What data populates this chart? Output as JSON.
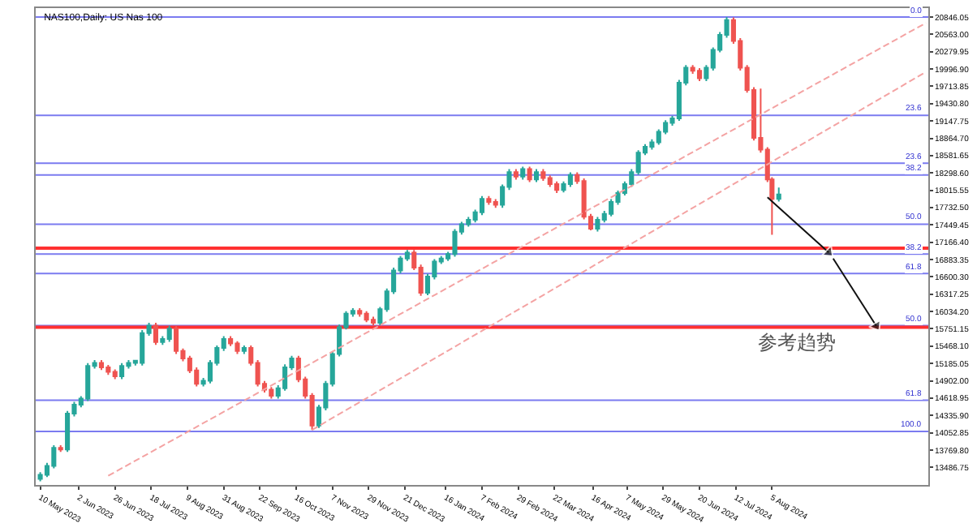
{
  "chart_data": {
    "type": "candlestick",
    "title": "NAS100,Daily: US Nas 100",
    "colors": [
      "#26a69a",
      "#26a69a",
      "#26a69a",
      "#ef5350",
      "#26a69a",
      "#26a69a",
      "#26a69a",
      "#26a69a",
      "#26a69a",
      "#ef5350",
      "#ef5350",
      "#ef5350",
      "#26a69a",
      "#26a69a",
      "#26a69a",
      "#26a69a",
      "#26a69a",
      "#ef5350",
      "#26a69a",
      "#26a69a",
      "#ef5350",
      "#ef5350",
      "#ef5350",
      "#ef5350",
      "#26a69a",
      "#26a69a",
      "#26a69a",
      "#26a69a",
      "#ef5350",
      "#ef5350",
      "#26a69a",
      "#ef5350",
      "#ef5350",
      "#ef5350",
      "#ef5350",
      "#26a69a",
      "#26a69a",
      "#26a69a",
      "#ef5350",
      "#ef5350",
      "#ef5350",
      "#26a69a",
      "#26a69a",
      "#26a69a",
      "#26a69a",
      "#26a69a",
      "#26a69a",
      "#ef5350",
      "#ef5350",
      "#ef5350",
      "#26a69a",
      "#26a69a",
      "#26a69a",
      "#26a69a",
      "#26a69a",
      "#ef5350",
      "#ef5350",
      "#26a69a",
      "#26a69a",
      "#26a69a",
      "#26a69a",
      "#26a69a",
      "#26a69a",
      "#26a69a",
      "#26a69a",
      "#26a69a",
      "#ef5350",
      "#ef5350",
      "#26a69a",
      "#26a69a",
      "#ef5350",
      "#26a69a",
      "#ef5350",
      "#26a69a",
      "#ef5350",
      "#ef5350",
      "#ef5350",
      "#26a69a",
      "#26a69a",
      "#ef5350",
      "#ef5350",
      "#ef5350",
      "#26a69a",
      "#26a69a",
      "#26a69a",
      "#26a69a",
      "#26a69a",
      "#26a69a",
      "#26a69a",
      "#26a69a",
      "#26a69a",
      "#26a69a",
      "#26a69a",
      "#26a69a",
      "#26a69a",
      "#26a69a",
      "#ef5350",
      "#ef5350",
      "#26a69a",
      "#26a69a",
      "#26a69a",
      "#26a69a",
      "#ef5350",
      "#ef5350",
      "#ef5350",
      "#ef5350",
      "#ef5350",
      "#ef5350",
      "#ef5350",
      "#26a69a"
    ],
    "x": [
      "2023-05-10",
      "2023-05-15",
      "2023-05-18",
      "2023-05-23",
      "2023-05-26",
      "2023-05-31",
      "2023-06-05",
      "2023-06-08",
      "2023-06-13",
      "2023-06-16",
      "2023-06-21",
      "2023-06-26",
      "2023-06-29",
      "2023-07-04",
      "2023-07-07",
      "2023-07-12",
      "2023-07-17",
      "2023-07-20",
      "2023-07-25",
      "2023-07-28",
      "2023-08-02",
      "2023-08-07",
      "2023-08-10",
      "2023-08-15",
      "2023-08-18",
      "2023-08-23",
      "2023-08-28",
      "2023-08-31",
      "2023-09-05",
      "2023-09-08",
      "2023-09-13",
      "2023-09-18",
      "2023-09-21",
      "2023-09-26",
      "2023-09-29",
      "2023-10-04",
      "2023-10-09",
      "2023-10-12",
      "2023-10-17",
      "2023-10-20",
      "2023-10-25",
      "2023-10-30",
      "2023-11-02",
      "2023-11-07",
      "2023-11-10",
      "2023-11-15",
      "2023-11-20",
      "2023-11-23",
      "2023-11-28",
      "2023-12-01",
      "2023-12-06",
      "2023-12-11",
      "2023-12-14",
      "2023-12-19",
      "2023-12-22",
      "2023-12-27",
      "2024-01-01",
      "2024-01-04",
      "2024-01-09",
      "2024-01-12",
      "2024-01-17",
      "2024-01-22",
      "2024-01-25",
      "2024-01-30",
      "2024-02-02",
      "2024-02-07",
      "2024-02-12",
      "2024-02-15",
      "2024-02-20",
      "2024-02-23",
      "2024-02-28",
      "2024-03-04",
      "2024-03-07",
      "2024-03-12",
      "2024-03-15",
      "2024-03-20",
      "2024-03-25",
      "2024-03-28",
      "2024-04-02",
      "2024-04-05",
      "2024-04-10",
      "2024-04-15",
      "2024-04-18",
      "2024-04-23",
      "2024-04-26",
      "2024-05-01",
      "2024-05-06",
      "2024-05-09",
      "2024-05-14",
      "2024-05-17",
      "2024-05-22",
      "2024-05-27",
      "2024-05-30",
      "2024-06-04",
      "2024-06-07",
      "2024-06-12",
      "2024-06-17",
      "2024-06-20",
      "2024-06-25",
      "2024-06-28",
      "2024-07-03",
      "2024-07-08",
      "2024-07-11",
      "2024-07-16",
      "2024-07-19",
      "2024-07-24",
      "2024-07-29",
      "2024-08-01",
      "2024-08-05",
      "2024-08-08"
    ],
    "ohlc": [
      [
        13300,
        13410,
        13260,
        13367
      ],
      [
        13367,
        13560,
        13330,
        13513
      ],
      [
        13513,
        13850,
        13470,
        13806
      ],
      [
        13806,
        13850,
        13740,
        13781
      ],
      [
        13781,
        14410,
        13740,
        14366
      ],
      [
        14366,
        14560,
        14320,
        14512
      ],
      [
        14512,
        14650,
        14470,
        14610
      ],
      [
        14610,
        15190,
        14570,
        15146
      ],
      [
        15146,
        15240,
        15100,
        15194
      ],
      [
        15194,
        15240,
        15080,
        15121
      ],
      [
        15121,
        15160,
        15000,
        15048
      ],
      [
        15048,
        15090,
        14930,
        14975
      ],
      [
        14975,
        15190,
        14930,
        15146
      ],
      [
        15146,
        15240,
        15100,
        15194
      ],
      [
        15194,
        15240,
        15150,
        15230
      ],
      [
        15194,
        15730,
        15150,
        15682
      ],
      [
        15682,
        15850,
        15640,
        15803
      ],
      [
        15803,
        15850,
        15490,
        15535
      ],
      [
        15535,
        15630,
        15490,
        15584
      ],
      [
        15584,
        15800,
        15540,
        15755
      ],
      [
        15755,
        15800,
        15340,
        15389
      ],
      [
        15389,
        15430,
        15220,
        15267
      ],
      [
        15267,
        15310,
        15030,
        15073
      ],
      [
        15073,
        15120,
        14810,
        14853
      ],
      [
        14853,
        14950,
        14810,
        14902
      ],
      [
        14902,
        15240,
        14860,
        15194
      ],
      [
        15194,
        15480,
        15150,
        15438
      ],
      [
        15438,
        15630,
        15390,
        15584
      ],
      [
        15584,
        15630,
        15470,
        15511
      ],
      [
        15511,
        15550,
        15340,
        15389
      ],
      [
        15389,
        15480,
        15340,
        15438
      ],
      [
        15438,
        15480,
        15150,
        15194
      ],
      [
        15194,
        15240,
        14810,
        14853
      ],
      [
        14853,
        14900,
        14710,
        14756
      ],
      [
        14756,
        14800,
        14610,
        14658
      ],
      [
        14658,
        14830,
        14610,
        14780
      ],
      [
        14780,
        15170,
        14740,
        15121
      ],
      [
        15121,
        15310,
        15080,
        15267
      ],
      [
        15267,
        15310,
        14880,
        14926
      ],
      [
        14926,
        14970,
        14610,
        14658
      ],
      [
        14658,
        14700,
        14098,
        14171
      ],
      [
        14171,
        14510,
        14130,
        14464
      ],
      [
        14464,
        14900,
        14420,
        14853
      ],
      [
        14853,
        15380,
        14810,
        15340
      ],
      [
        15340,
        15820,
        15300,
        15779
      ],
      [
        15779,
        16040,
        15740,
        15998
      ],
      [
        15998,
        16090,
        15950,
        16047
      ],
      [
        16047,
        16090,
        15950,
        15998
      ],
      [
        15998,
        16040,
        15860,
        15901
      ],
      [
        15901,
        15950,
        15810,
        15852
      ],
      [
        15852,
        16110,
        15810,
        16071
      ],
      [
        16071,
        16410,
        16030,
        16364
      ],
      [
        16364,
        16750,
        16320,
        16705
      ],
      [
        16705,
        16940,
        16660,
        16900
      ],
      [
        16900,
        17040,
        16860,
        16997
      ],
      [
        16997,
        17040,
        16710,
        16753
      ],
      [
        16753,
        16800,
        16290,
        16339
      ],
      [
        16339,
        16650,
        16300,
        16607
      ],
      [
        16607,
        16890,
        16560,
        16851
      ],
      [
        16851,
        16940,
        16810,
        16900
      ],
      [
        16900,
        17010,
        16860,
        16973
      ],
      [
        16973,
        17380,
        16930,
        17338
      ],
      [
        17338,
        17500,
        17290,
        17460
      ],
      [
        17460,
        17580,
        17420,
        17533
      ],
      [
        17533,
        17700,
        17490,
        17655
      ],
      [
        17655,
        17920,
        17610,
        17874
      ],
      [
        17874,
        17920,
        17780,
        17825
      ],
      [
        17825,
        17870,
        17730,
        17777
      ],
      [
        17777,
        18110,
        17730,
        18069
      ],
      [
        18069,
        18360,
        18020,
        18312
      ],
      [
        18312,
        18360,
        18190,
        18239
      ],
      [
        18239,
        18400,
        18190,
        18361
      ],
      [
        18361,
        18400,
        18150,
        18191
      ],
      [
        18191,
        18360,
        18150,
        18312
      ],
      [
        18312,
        18360,
        18170,
        18215
      ],
      [
        18215,
        18260,
        18070,
        18117
      ],
      [
        18117,
        18160,
        17970,
        18020
      ],
      [
        18020,
        18160,
        17980,
        18117
      ],
      [
        18117,
        18310,
        18070,
        18264
      ],
      [
        18264,
        18310,
        18120,
        18166
      ],
      [
        18166,
        18210,
        17540,
        17582
      ],
      [
        17582,
        17630,
        17362,
        17387
      ],
      [
        17387,
        17580,
        17340,
        17533
      ],
      [
        17533,
        17680,
        17490,
        17630
      ],
      [
        17630,
        17870,
        17590,
        17825
      ],
      [
        17825,
        18010,
        17780,
        17971
      ],
      [
        17971,
        18160,
        17930,
        18117
      ],
      [
        18117,
        18360,
        18070,
        18312
      ],
      [
        18312,
        18670,
        18270,
        18629
      ],
      [
        18629,
        18770,
        18590,
        18727
      ],
      [
        18727,
        18850,
        18680,
        18800
      ],
      [
        18800,
        19010,
        18760,
        18970
      ],
      [
        18970,
        19160,
        18930,
        19116
      ],
      [
        19116,
        19230,
        19070,
        19189
      ],
      [
        19189,
        19820,
        19150,
        19774
      ],
      [
        19774,
        20060,
        19730,
        20018
      ],
      [
        20018,
        20060,
        19920,
        19969
      ],
      [
        19969,
        20010,
        19800,
        19847
      ],
      [
        19847,
        20060,
        19800,
        20018
      ],
      [
        20018,
        20350,
        19970,
        20310
      ],
      [
        20310,
        20600,
        20270,
        20554
      ],
      [
        20554,
        20846,
        20510,
        20797
      ],
      [
        20797,
        20840,
        20410,
        20456
      ],
      [
        20456,
        20500,
        19970,
        20018
      ],
      [
        20018,
        20060,
        19610,
        19652
      ],
      [
        19652,
        19700,
        18830,
        18873
      ],
      [
        18873,
        19677,
        18630,
        18678
      ],
      [
        18678,
        18720,
        18150,
        18191
      ],
      [
        18191,
        18230,
        17289,
        17874
      ],
      [
        17874,
        18060,
        17830,
        17947
      ]
    ],
    "series": [
      {
        "type": "line",
        "color": "#f4a3a3",
        "line_style": "dashed",
        "x": [
          "2023-06-21",
          "2024-11-07"
        ],
        "values": [
          13350,
          20750
        ]
      },
      {
        "type": "line",
        "color": "#f4a3a3",
        "line_style": "dashed",
        "x": [
          "2023-10-25",
          "2024-11-07"
        ],
        "values": [
          14100,
          19950
        ]
      },
      {
        "type": "line",
        "color": "#111111",
        "line_style": "solid",
        "marker": "triangle",
        "x": [
          "2024-08-01",
          "2024-09-09"
        ],
        "values": [
          17900,
          17000
        ]
      },
      {
        "type": "line",
        "color": "#111111",
        "line_style": "solid",
        "marker": "triangle",
        "x": [
          "2024-09-11",
          "2024-10-08"
        ],
        "values": [
          16900,
          15800
        ]
      }
    ],
    "ref_lines": [
      {
        "axis": "y",
        "value": 20846,
        "color": "#7b7bf0"
      },
      {
        "axis": "y",
        "value": 19238,
        "color": "#7b7bf0"
      },
      {
        "axis": "y",
        "value": 18459,
        "color": "#7b7bf0"
      },
      {
        "axis": "y",
        "value": 18264,
        "color": "#7b7bf0"
      },
      {
        "axis": "y",
        "value": 17460,
        "color": "#7b7bf0"
      },
      {
        "axis": "y",
        "value": 17070,
        "color": "#ff3030"
      },
      {
        "axis": "y",
        "value": 16973,
        "color": "#7b7bf0"
      },
      {
        "axis": "y",
        "value": 16656,
        "color": "#7b7bf0"
      },
      {
        "axis": "y",
        "value": 15803,
        "color": "#7b7bf0"
      },
      {
        "axis": "y",
        "value": 15779,
        "color": "#ff3030"
      },
      {
        "axis": "y",
        "value": 14585,
        "color": "#7b7bf0"
      },
      {
        "axis": "y",
        "value": 14074,
        "color": "#7b7bf0"
      }
    ],
    "annotations": [
      "参考趋势",
      {
        "text": "0.0",
        "y": 20846
      },
      {
        "text": "23.6",
        "y": 19238
      },
      {
        "text": "23.6",
        "y": 18459
      },
      {
        "text": "38.2",
        "y": 18264
      },
      {
        "text": "50.0",
        "y": 17460
      },
      {
        "text": "38.2",
        "y": 16973
      },
      {
        "text": "61.8",
        "y": 16656
      },
      {
        "text": "50.0",
        "y": 15803
      },
      {
        "text": "61.8",
        "y": 14585
      },
      {
        "text": "100.0",
        "y": 14074
      }
    ],
    "xlim": [
      "2023-05-08",
      "2024-11-08"
    ],
    "xticks": [
      {
        "value": "2023-05-10",
        "label": "10 May 2023"
      },
      {
        "value": "2023-06-02",
        "label": "2 Jun 2023"
      },
      {
        "value": "2023-06-26",
        "label": "26 Jun 2023"
      },
      {
        "value": "2023-07-18",
        "label": "18 Jul 2023"
      },
      {
        "value": "2023-08-09",
        "label": "9 Aug 2023"
      },
      {
        "value": "2023-08-31",
        "label": "31 Aug 2023"
      },
      {
        "value": "2023-09-22",
        "label": "22 Sep 2023"
      },
      {
        "value": "2023-10-16",
        "label": "16 Oct 2023"
      },
      {
        "value": "2023-11-07",
        "label": "7 Nov 2023"
      },
      {
        "value": "2023-11-29",
        "label": "29 Nov 2023"
      },
      {
        "value": "2023-12-21",
        "label": "21 Dec 2023"
      },
      {
        "value": "2024-01-16",
        "label": "16 Jan 2024"
      },
      {
        "value": "2024-02-07",
        "label": "7 Feb 2024"
      },
      {
        "value": "2024-02-29",
        "label": "29 Feb 2024"
      },
      {
        "value": "2024-03-22",
        "label": "22 Mar 2024"
      },
      {
        "value": "2024-04-16",
        "label": "16 Apr 2024"
      },
      {
        "value": "2024-05-07",
        "label": "7 May 2024"
      },
      {
        "value": "2024-05-29",
        "label": "29 May 2024"
      },
      {
        "value": "2024-06-20",
        "label": "20 Jun 2024"
      },
      {
        "value": "2024-07-12",
        "label": "12 Jul 2024"
      },
      {
        "value": "2024-08-05",
        "label": "5 Aug 2024"
      }
    ],
    "ylim": [
      13200,
      20992
    ],
    "yticks": [
      {
        "value": 20846.05,
        "label": "20846.05"
      },
      {
        "value": 20563,
        "label": "20563.00"
      },
      {
        "value": 20279.95,
        "label": "20279.95"
      },
      {
        "value": 19996.9,
        "label": "19996.90"
      },
      {
        "value": 19713.85,
        "label": "19713.85"
      },
      {
        "value": 19430.8,
        "label": "19430.80"
      },
      {
        "value": 19147.75,
        "label": "19147.75"
      },
      {
        "value": 18864.7,
        "label": "18864.70"
      },
      {
        "value": 18581.65,
        "label": "18581.65"
      },
      {
        "value": 18298.6,
        "label": "18298.60"
      },
      {
        "value": 18015.55,
        "label": "18015.55"
      },
      {
        "value": 17732.5,
        "label": "17732.50"
      },
      {
        "value": 17449.45,
        "label": "17449.45"
      },
      {
        "value": 17166.4,
        "label": "17166.40"
      },
      {
        "value": 16883.35,
        "label": "16883.35"
      },
      {
        "value": 16600.3,
        "label": "16600.30"
      },
      {
        "value": 16317.25,
        "label": "16317.25"
      },
      {
        "value": 16034.2,
        "label": "16034.20"
      },
      {
        "value": 15751.15,
        "label": "15751.15"
      },
      {
        "value": 15468.1,
        "label": "15468.10"
      },
      {
        "value": 15185.05,
        "label": "15185.05"
      },
      {
        "value": 14902,
        "label": "14902.00"
      },
      {
        "value": 14618.95,
        "label": "14618.95"
      },
      {
        "value": 14335.9,
        "label": "14335.90"
      },
      {
        "value": 14052.85,
        "label": "14052.85"
      },
      {
        "value": 13769.8,
        "label": "13769.80"
      },
      {
        "value": 13486.75,
        "label": "13486.75"
      }
    ]
  }
}
